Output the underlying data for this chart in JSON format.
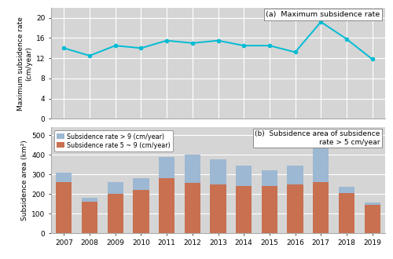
{
  "years": [
    2007,
    2008,
    2009,
    2010,
    2011,
    2012,
    2013,
    2014,
    2015,
    2016,
    2017,
    2018,
    2019
  ],
  "max_subsidence": [
    14.0,
    12.5,
    14.5,
    14.0,
    15.5,
    15.0,
    15.5,
    14.5,
    14.5,
    13.2,
    19.2,
    15.8,
    11.8
  ],
  "area_gt9": [
    50,
    20,
    60,
    60,
    110,
    145,
    125,
    105,
    80,
    95,
    175,
    30,
    10
  ],
  "area_5to9": [
    260,
    160,
    200,
    220,
    280,
    255,
    250,
    240,
    240,
    250,
    260,
    205,
    145
  ],
  "line_color": "#00bcd4",
  "bar_color_gt9": "#9db8d2",
  "bar_color_5to9": "#c87050",
  "bg_color": "#d5d5d5",
  "title_a": "(a)  Maximum subsidence rate",
  "title_b": "(b)  Subsidence area of subsidence\nrate > 5 cm/year",
  "ylabel_a": "Maximum subsidence rate\n(cm/year)",
  "ylabel_b": "Subsidence area (km²)",
  "legend_gt9": "Subsidence rate > 9 (cm/year)",
  "legend_5to9": "Subsidence rate 5 ~ 9 (cm/year)",
  "ylim_a": [
    0,
    22
  ],
  "ylim_b": [
    0,
    540
  ],
  "yticks_a": [
    0,
    4,
    8,
    12,
    16,
    20
  ],
  "yticks_b": [
    0,
    100,
    200,
    300,
    400,
    500
  ]
}
